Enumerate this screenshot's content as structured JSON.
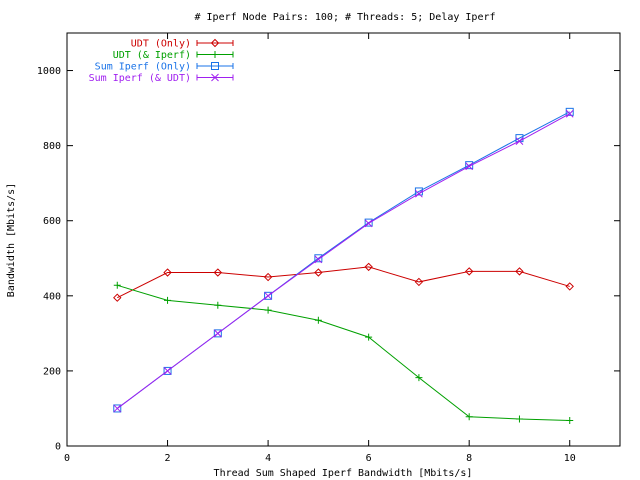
{
  "chart_data": {
    "type": "line",
    "title": "# Iperf Node Pairs: 100; # Threads: 5; Delay Iperf",
    "xlabel": "Thread Sum Shaped Iperf Bandwidth [Mbits/s]",
    "ylabel": "Bandwidth [Mbits/s]",
    "xlim": [
      0,
      11
    ],
    "ylim": [
      0,
      1100
    ],
    "xticks": [
      0,
      2,
      4,
      6,
      8,
      10
    ],
    "yticks": [
      0,
      200,
      400,
      600,
      800,
      1000
    ],
    "grid": false,
    "legend_position": "top-left",
    "x": [
      1,
      2,
      3,
      4,
      5,
      6,
      7,
      8,
      9,
      10
    ],
    "series": [
      {
        "name": "UDT (Only)",
        "color": "#cc0000",
        "marker": "diamond",
        "values": [
          395,
          462,
          462,
          450,
          462,
          477,
          437,
          465,
          465,
          425
        ]
      },
      {
        "name": "UDT (& Iperf)",
        "color": "#00a000",
        "marker": "plus",
        "values": [
          428,
          388,
          375,
          362,
          335,
          290,
          182,
          78,
          72,
          68
        ]
      },
      {
        "name": "Sum Iperf (Only)",
        "color": "#1a73e8",
        "marker": "square",
        "values": [
          100,
          200,
          300,
          400,
          500,
          595,
          678,
          748,
          820,
          890
        ]
      },
      {
        "name": "Sum Iperf (& UDT)",
        "color": "#a020f0",
        "marker": "cross",
        "values": [
          100,
          200,
          300,
          400,
          497,
          593,
          672,
          745,
          812,
          885
        ]
      }
    ]
  }
}
